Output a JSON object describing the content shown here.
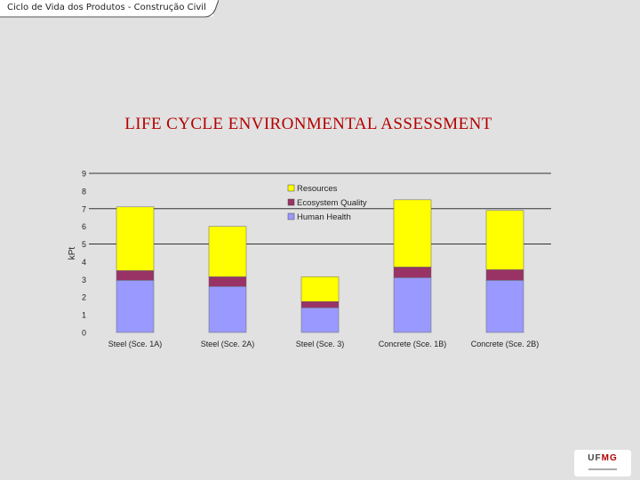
{
  "header": {
    "course_title": "Ciclo de Vida dos Produtos - Construção Civil"
  },
  "slide": {
    "title": "LIFE CYCLE ENVIRONMENTAL ASSESSMENT"
  },
  "logo": {
    "text_a": "UF",
    "text_b": "MG"
  },
  "colors": {
    "human_health": "#9999ff",
    "ecosystem_quality": "#993366",
    "resources": "#ffff00",
    "title": "#b40000"
  },
  "chart_data": {
    "type": "bar",
    "stacked": true,
    "title": "",
    "xlabel": "",
    "ylabel": "kPt",
    "ylim": [
      0,
      9
    ],
    "yticks": [
      0,
      1,
      2,
      3,
      4,
      5,
      6,
      7,
      8,
      9
    ],
    "grid": "horizontal, dark, at 5, 7, 9",
    "legend_position": "top-center",
    "categories": [
      "Steel (Sce. 1A)",
      "Steel (Sce. 2A)",
      "Steel (Sce. 3)",
      "Concrete (Sce. 1B)",
      "Concrete (Sce. 2B)"
    ],
    "series": [
      {
        "name": "Human Health",
        "values": [
          2.95,
          2.6,
          1.4,
          3.1,
          2.95
        ]
      },
      {
        "name": "Ecosystem Quality",
        "values": [
          0.55,
          0.55,
          0.35,
          0.6,
          0.6
        ]
      },
      {
        "name": "Resources",
        "values": [
          3.6,
          2.85,
          1.4,
          3.8,
          3.35
        ]
      }
    ],
    "legend_order": [
      "Resources",
      "Ecosystem Quality",
      "Human Health"
    ]
  }
}
